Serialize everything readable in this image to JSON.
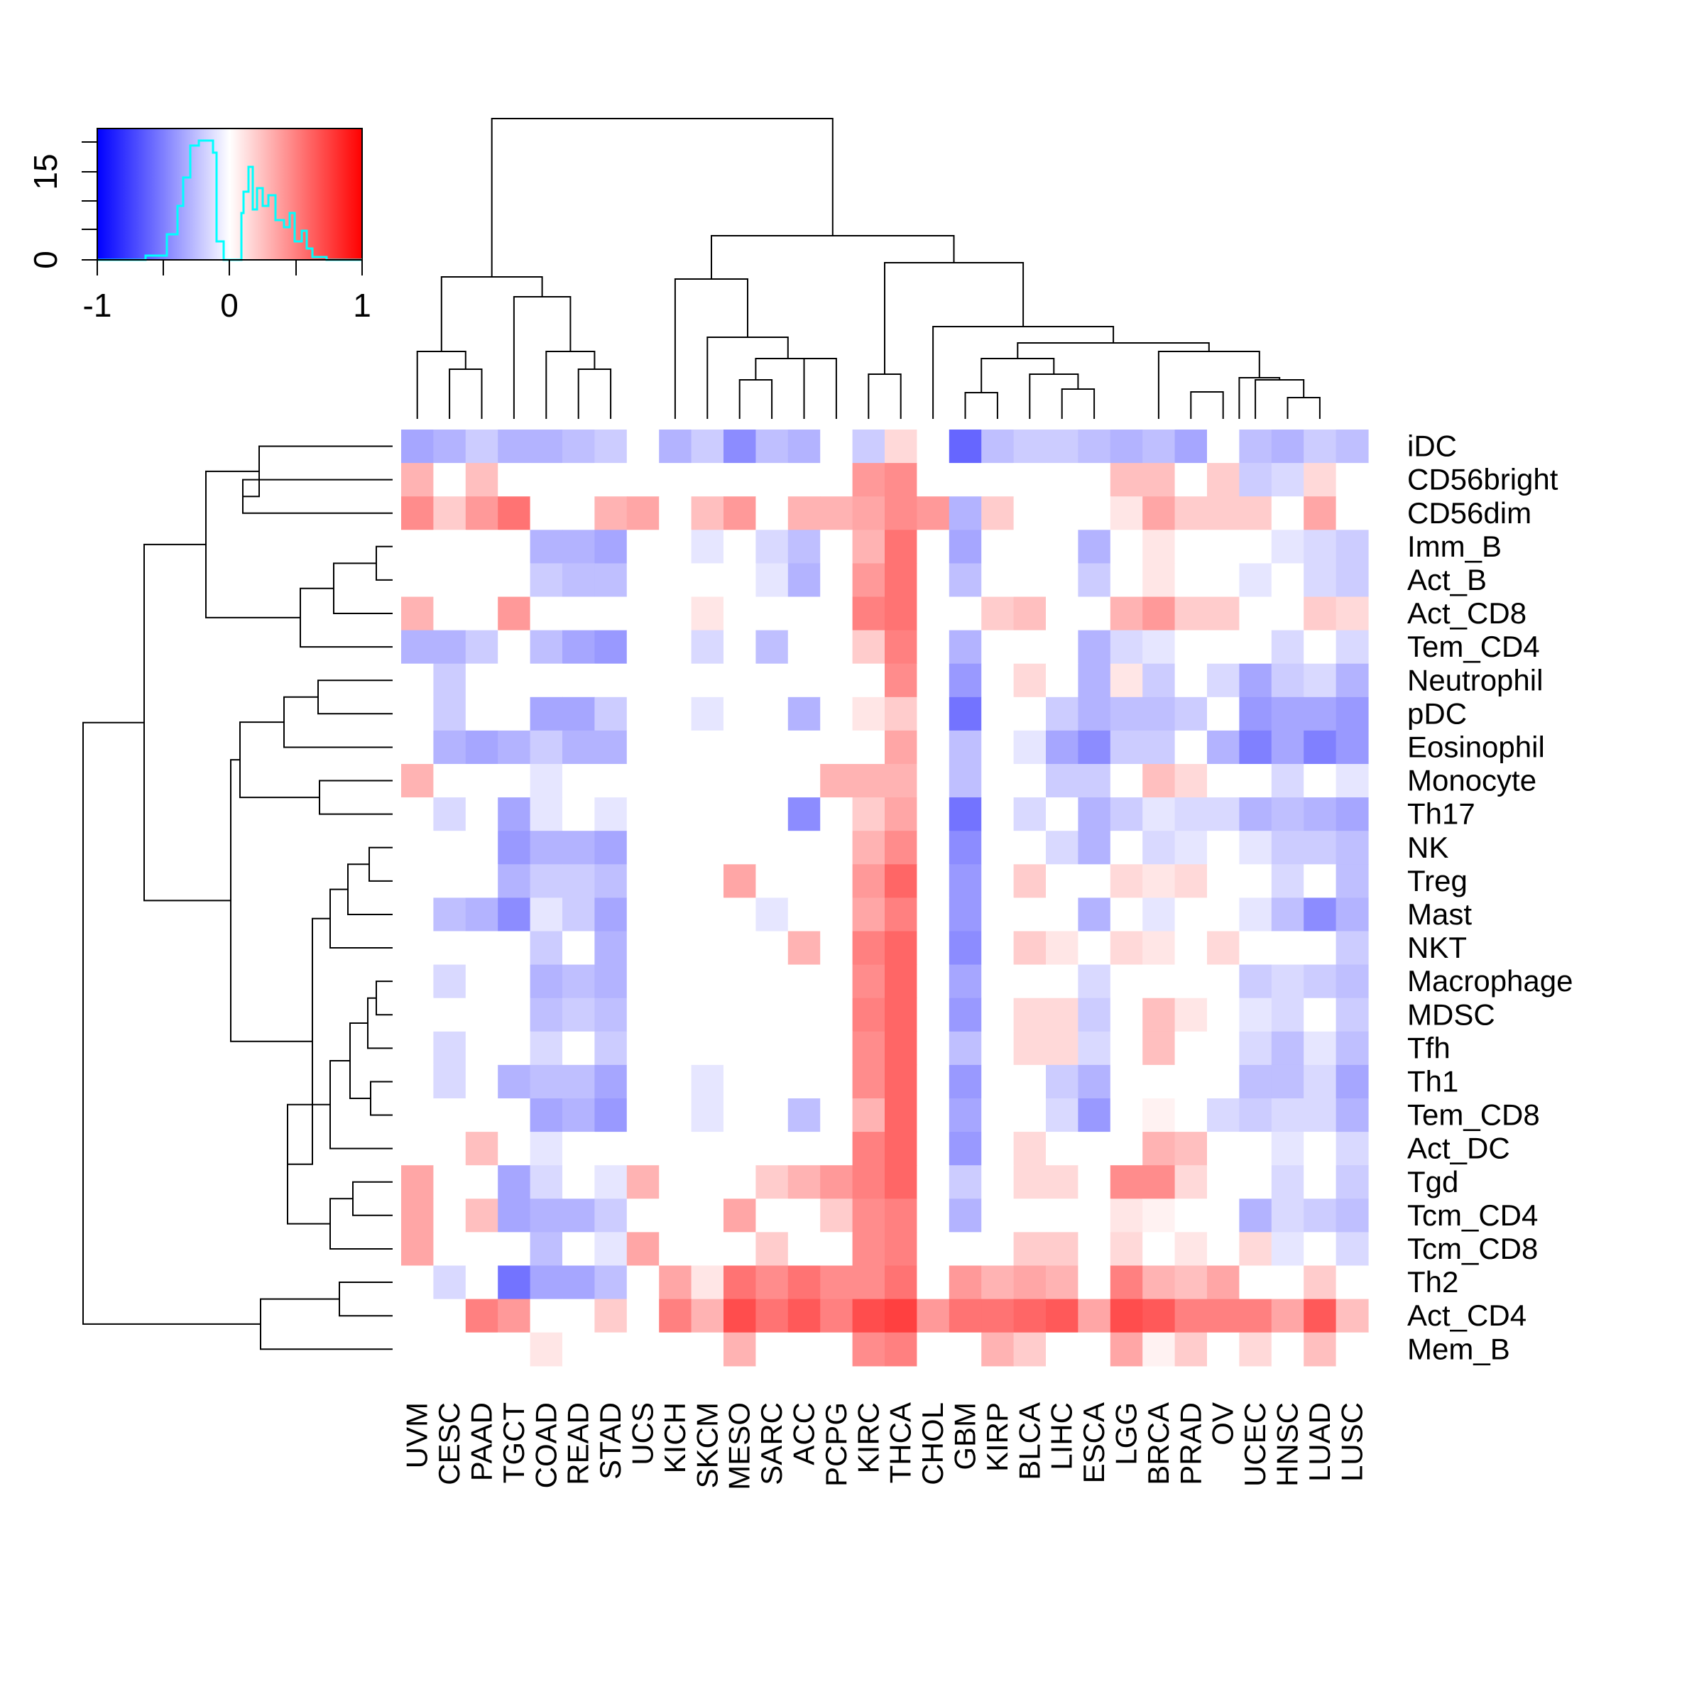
{
  "chart_data": {
    "type": "heatmap",
    "title": "",
    "columns": [
      "UVM",
      "CESC",
      "PAAD",
      "TGCT",
      "COAD",
      "READ",
      "STAD",
      "UCS",
      "KICH",
      "SKCM",
      "MESO",
      "SARC",
      "ACC",
      "PCPG",
      "KIRC",
      "THCA",
      "CHOL",
      "GBM",
      "KIRP",
      "BLCA",
      "LIHC",
      "ESCA",
      "LGG",
      "BRCA",
      "PRAD",
      "OV",
      "UCEC",
      "HNSC",
      "LUAD",
      "LUSC"
    ],
    "rows": [
      "iDC",
      "CD56bright",
      "CD56dim",
      "Imm_B",
      "Act_B",
      "Act_CD8",
      "Tem_CD4",
      "Neutrophil",
      "pDC",
      "Eosinophil",
      "Monocyte",
      "Th17",
      "NK",
      "Treg",
      "Mast",
      "NKT",
      "Macrophage",
      "MDSC",
      "Tfh",
      "Th1",
      "Tem_CD8",
      "Act_DC",
      "Tgd",
      "Tcm_CD4",
      "Tcm_CD8",
      "Th2",
      "Act_CD4",
      "Mem_B"
    ],
    "values": [
      [
        -0.35,
        -0.3,
        -0.2,
        -0.3,
        -0.3,
        -0.25,
        -0.2,
        0,
        -0.3,
        -0.2,
        -0.45,
        -0.25,
        -0.3,
        0,
        -0.2,
        0.15,
        0,
        -0.6,
        -0.25,
        -0.2,
        -0.2,
        -0.25,
        -0.3,
        -0.25,
        -0.35,
        0,
        -0.25,
        -0.3,
        -0.2,
        -0.25
      ],
      [
        0.3,
        0,
        0.25,
        0,
        0,
        0,
        0,
        0,
        0,
        0,
        0,
        0,
        0,
        0,
        0.4,
        0.45,
        0,
        0,
        0,
        0,
        0,
        0,
        0.25,
        0.25,
        0,
        0.2,
        -0.2,
        -0.15,
        0.15,
        0
      ],
      [
        0.45,
        0.2,
        0.4,
        0.55,
        0,
        0,
        0.3,
        0.35,
        0,
        0.25,
        0.4,
        0,
        0.3,
        0.3,
        0.35,
        0.45,
        0.4,
        -0.3,
        0.2,
        0,
        0,
        0,
        0.1,
        0.35,
        0.2,
        0.2,
        0.2,
        0,
        0.35,
        0
      ],
      [
        0,
        0,
        0,
        0,
        -0.3,
        -0.3,
        -0.35,
        0,
        0,
        -0.1,
        0,
        -0.15,
        -0.25,
        0,
        0.3,
        0.55,
        0,
        -0.35,
        0,
        0,
        0,
        -0.3,
        0,
        0.1,
        0,
        0,
        0,
        -0.1,
        -0.15,
        -0.2
      ],
      [
        0,
        0,
        0,
        0,
        -0.2,
        -0.25,
        -0.25,
        0,
        0,
        0,
        0,
        -0.1,
        -0.3,
        0,
        0.4,
        0.55,
        0,
        -0.25,
        0,
        0,
        0,
        -0.2,
        0,
        0.1,
        0,
        0,
        -0.1,
        0,
        -0.15,
        -0.2
      ],
      [
        0.3,
        0,
        0,
        0.4,
        0,
        0,
        0,
        0,
        0,
        0.1,
        0,
        0,
        0,
        0,
        0.5,
        0.55,
        0,
        0,
        0.2,
        0.25,
        0,
        0,
        0.3,
        0.4,
        0.2,
        0.2,
        0,
        0,
        0.2,
        0.15
      ],
      [
        -0.3,
        -0.3,
        -0.2,
        0,
        -0.25,
        -0.35,
        -0.4,
        0,
        0,
        -0.15,
        0,
        -0.25,
        0,
        0,
        0.2,
        0.5,
        0,
        -0.3,
        0,
        0,
        0,
        -0.3,
        -0.15,
        -0.1,
        0,
        0,
        0,
        -0.15,
        0,
        -0.15
      ],
      [
        0,
        -0.2,
        0,
        0,
        0,
        0,
        0,
        0,
        0,
        0,
        0,
        0,
        0,
        0,
        0,
        0.45,
        0,
        -0.4,
        0,
        0.15,
        0,
        -0.3,
        0.1,
        -0.2,
        0,
        -0.15,
        -0.35,
        -0.2,
        -0.15,
        -0.3
      ],
      [
        0,
        -0.2,
        0,
        0,
        -0.35,
        -0.35,
        -0.2,
        0,
        0,
        -0.1,
        0,
        0,
        -0.3,
        0,
        0.1,
        0.2,
        0,
        -0.55,
        0,
        0,
        -0.2,
        -0.3,
        -0.25,
        -0.25,
        -0.2,
        0,
        -0.4,
        -0.35,
        -0.35,
        -0.4
      ],
      [
        0,
        -0.3,
        -0.35,
        -0.3,
        -0.2,
        -0.3,
        -0.3,
        0,
        0,
        0,
        0,
        0,
        0,
        0,
        0,
        0.35,
        0,
        -0.25,
        0,
        -0.1,
        -0.35,
        -0.45,
        -0.2,
        -0.2,
        0,
        -0.3,
        -0.5,
        -0.35,
        -0.5,
        -0.4
      ],
      [
        0.3,
        0,
        0,
        0,
        -0.1,
        0,
        0,
        0,
        0,
        0,
        0,
        0,
        0,
        0.3,
        0.3,
        0.3,
        0,
        -0.25,
        0,
        0,
        -0.2,
        -0.2,
        0,
        0.25,
        0.15,
        0,
        0,
        -0.15,
        0,
        -0.1
      ],
      [
        0,
        -0.15,
        0,
        -0.35,
        -0.1,
        0,
        -0.1,
        0,
        0,
        0,
        0,
        0,
        -0.45,
        0,
        0.2,
        0.35,
        0,
        -0.55,
        0,
        -0.15,
        0,
        -0.3,
        -0.2,
        -0.1,
        -0.15,
        -0.15,
        -0.3,
        -0.25,
        -0.3,
        -0.35
      ],
      [
        0,
        0,
        0,
        -0.4,
        -0.3,
        -0.3,
        -0.35,
        0,
        0,
        0,
        0,
        0,
        0,
        0,
        0.3,
        0.45,
        0,
        -0.45,
        0,
        0,
        -0.15,
        -0.3,
        0,
        -0.15,
        -0.1,
        0,
        -0.1,
        -0.2,
        -0.2,
        -0.25
      ],
      [
        0,
        0,
        0,
        -0.3,
        -0.2,
        -0.2,
        -0.25,
        0,
        0,
        0,
        0.35,
        0,
        0,
        0,
        0.4,
        0.6,
        0,
        -0.4,
        0,
        0.2,
        0,
        0,
        0.15,
        0.1,
        0.15,
        0,
        0,
        -0.15,
        0,
        -0.25
      ],
      [
        0,
        -0.25,
        -0.3,
        -0.45,
        -0.1,
        -0.2,
        -0.35,
        0,
        0,
        0,
        0,
        -0.1,
        0,
        0,
        0.35,
        0.5,
        0,
        -0.4,
        0,
        0,
        0,
        -0.3,
        0,
        -0.1,
        0,
        0,
        -0.1,
        -0.25,
        -0.45,
        -0.3
      ],
      [
        0,
        0,
        0,
        0,
        -0.2,
        0,
        -0.3,
        0,
        0,
        0,
        0,
        0,
        0.3,
        0,
        0.5,
        0.6,
        0,
        -0.45,
        0,
        0.2,
        0.1,
        0,
        0.15,
        0.1,
        0,
        0.15,
        0,
        0,
        0,
        -0.2
      ],
      [
        0,
        -0.15,
        0,
        0,
        -0.3,
        -0.25,
        -0.3,
        0,
        0,
        0,
        0,
        0,
        0,
        0,
        0.45,
        0.6,
        0,
        -0.35,
        0,
        0,
        0,
        -0.15,
        0,
        0,
        0,
        0,
        -0.2,
        -0.15,
        -0.2,
        -0.25
      ],
      [
        0,
        0,
        0,
        0,
        -0.25,
        -0.2,
        -0.25,
        0,
        0,
        0,
        0,
        0,
        0,
        0,
        0.5,
        0.6,
        0,
        -0.4,
        0,
        0.15,
        0.15,
        -0.2,
        0,
        0.25,
        0.1,
        0,
        -0.1,
        -0.15,
        0,
        -0.2
      ],
      [
        0,
        -0.15,
        0,
        0,
        -0.15,
        0,
        -0.2,
        0,
        0,
        0,
        0,
        0,
        0,
        0,
        0.45,
        0.6,
        0,
        -0.25,
        0,
        0.15,
        0.15,
        -0.15,
        0,
        0.25,
        0,
        0,
        -0.15,
        -0.25,
        -0.1,
        -0.25
      ],
      [
        0,
        -0.15,
        0,
        -0.3,
        -0.25,
        -0.25,
        -0.35,
        0,
        0,
        -0.1,
        0,
        0,
        0,
        0,
        0.45,
        0.6,
        0,
        -0.4,
        0,
        0,
        -0.2,
        -0.3,
        0,
        0,
        0,
        0,
        -0.25,
        -0.25,
        -0.15,
        -0.35
      ],
      [
        0,
        0,
        0,
        0,
        -0.35,
        -0.3,
        -0.4,
        0,
        0,
        -0.1,
        0,
        0,
        -0.25,
        0,
        0.3,
        0.6,
        0,
        -0.35,
        0,
        0,
        -0.15,
        -0.4,
        0,
        0.05,
        0,
        -0.15,
        -0.2,
        -0.15,
        -0.15,
        -0.3
      ],
      [
        0,
        0,
        0.25,
        0,
        -0.1,
        0,
        0,
        0,
        0,
        0,
        0,
        0,
        0,
        0,
        0.5,
        0.6,
        0,
        -0.4,
        0,
        0.15,
        0,
        0,
        0,
        0.3,
        0.25,
        0,
        0,
        -0.1,
        0,
        -0.15
      ],
      [
        0.35,
        0,
        0,
        -0.35,
        -0.15,
        0,
        -0.1,
        0.3,
        0,
        0,
        0,
        0.2,
        0.3,
        0.4,
        0.5,
        0.6,
        0,
        -0.2,
        0,
        0.15,
        0.15,
        0,
        0.45,
        0.45,
        0.15,
        0,
        0,
        -0.15,
        0,
        -0.2
      ],
      [
        0.35,
        0,
        0.25,
        -0.35,
        -0.3,
        -0.3,
        -0.2,
        0,
        0,
        0,
        0.35,
        0,
        0,
        0.2,
        0.45,
        0.5,
        0,
        -0.3,
        0,
        0,
        0,
        0,
        0.1,
        0.05,
        0,
        0,
        -0.3,
        -0.15,
        -0.2,
        -0.25
      ],
      [
        0.35,
        0,
        0,
        0,
        -0.25,
        0,
        -0.1,
        0.35,
        0,
        0,
        0,
        0.2,
        0,
        0,
        0.45,
        0.5,
        0,
        0,
        0,
        0.2,
        0.2,
        0,
        0.15,
        0,
        0.1,
        0,
        0.15,
        -0.1,
        0,
        -0.15
      ],
      [
        0,
        -0.15,
        0,
        -0.55,
        -0.35,
        -0.35,
        -0.25,
        0,
        0.35,
        0.1,
        0.55,
        0.45,
        0.55,
        0.45,
        0.45,
        0.55,
        0,
        0.4,
        0.3,
        0.35,
        0.3,
        0,
        0.5,
        0.3,
        0.25,
        0.35,
        0,
        0,
        0.2,
        0
      ],
      [
        0,
        0,
        0.5,
        0.4,
        0,
        0,
        0.2,
        0,
        0.5,
        0.3,
        0.7,
        0.55,
        0.65,
        0.5,
        0.7,
        0.75,
        0.4,
        0.55,
        0.55,
        0.6,
        0.65,
        0.35,
        0.7,
        0.65,
        0.5,
        0.5,
        0.5,
        0.35,
        0.65,
        0.25
      ],
      [
        0,
        0,
        0,
        0,
        0.1,
        0,
        0,
        0,
        0,
        0,
        0.3,
        0,
        0,
        0,
        0.45,
        0.5,
        0,
        0,
        0.3,
        0.2,
        0,
        0,
        0.35,
        0.05,
        0.2,
        0,
        0.15,
        0,
        0.25,
        0
      ]
    ],
    "color_key": {
      "low_color": "#0000FF",
      "mid_color": "#FFFFFF",
      "high_color": "#FF0000",
      "histogram_color": "#00FFFF",
      "x_ticks": [
        "-1",
        "0",
        "1"
      ],
      "y_ticks": [
        "0",
        "15"
      ],
      "range": [
        -1,
        1
      ]
    },
    "dendrogram_color": "#000000"
  }
}
